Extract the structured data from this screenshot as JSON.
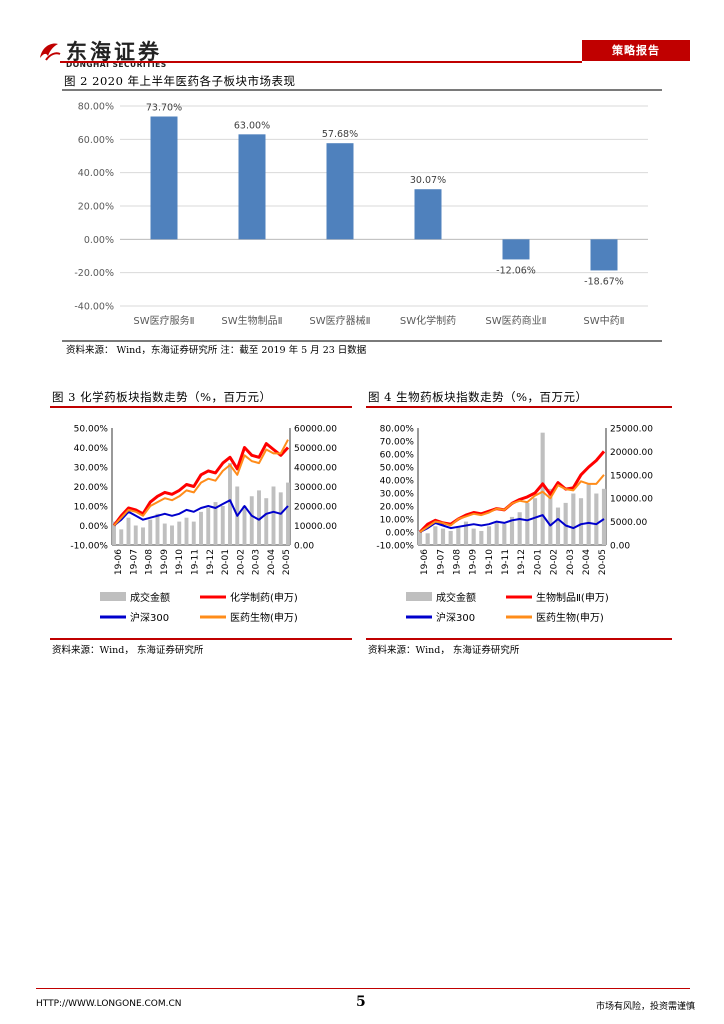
{
  "header": {
    "logo_name": "东海证券",
    "logo_sub": "DONGHAI SECURITIES",
    "badge": "策略报告"
  },
  "figure2": {
    "title": "图 2   2020 年上半年医药各子板块市场表现",
    "source": "资料来源：  Wind，东海证券研究所  注：截至 2019 年 5 月 23 日数据",
    "chart_data": {
      "type": "bar",
      "title": "",
      "categories": [
        "SW医疗服务Ⅱ",
        "SW生物制品Ⅱ",
        "SW医疗器械Ⅱ",
        "SW化学制药",
        "SW医药商业Ⅱ",
        "SW中药Ⅱ"
      ],
      "values": [
        73.7,
        63.0,
        57.68,
        30.07,
        -12.06,
        -18.67
      ],
      "value_labels": [
        "73.70%",
        "63.00%",
        "57.68%",
        "30.07%",
        "-12.06%",
        "-18.67%"
      ],
      "ylim": [
        -40,
        80
      ],
      "yticks": [
        "80.00%",
        "60.00%",
        "40.00%",
        "20.00%",
        "0.00%",
        "-20.00%",
        "-40.00%"
      ],
      "grid": true,
      "colors": {
        "bar": "#4f81bd"
      }
    }
  },
  "figure3": {
    "title": "图 3   化学药板块指数走势（%，百万元）",
    "source": "资料来源：Wind，  东海证券研究所",
    "chart_data": {
      "type": "line",
      "xticks": [
        "19-06",
        "19-07",
        "19-08",
        "19-09",
        "19-10",
        "19-11",
        "19-12",
        "20-01",
        "20-02",
        "20-03",
        "20-04",
        "20-05"
      ],
      "left_ticks": [
        "50.00%",
        "40.00%",
        "30.00%",
        "20.00%",
        "10.00%",
        "0.00%",
        "-10.00%"
      ],
      "right_ticks": [
        "60000.00",
        "50000.00",
        "40000.00",
        "30000.00",
        "20000.00",
        "10000.00",
        "0.00"
      ],
      "ylim_left": [
        -10,
        50
      ],
      "ylim_right": [
        0,
        60000
      ],
      "series": [
        {
          "name": "成交金额",
          "kind": "bar",
          "axis": "right",
          "color": "#bfbfbf",
          "values": [
            12000,
            8000,
            14000,
            10000,
            9000,
            13000,
            16000,
            11000,
            10000,
            12000,
            14000,
            12000,
            17000,
            19000,
            22000,
            20000,
            42000,
            30000,
            20000,
            25000,
            28000,
            24000,
            30000,
            27000,
            32000
          ]
        },
        {
          "name": "化学制药(申万)",
          "kind": "line",
          "axis": "left",
          "color": "#ff0000",
          "values": [
            0,
            5,
            9,
            8,
            6,
            12,
            15,
            17,
            16,
            18,
            21,
            20,
            26,
            28,
            27,
            32,
            35,
            29,
            40,
            36,
            35,
            42,
            39,
            36,
            40
          ]
        },
        {
          "name": "沪深300",
          "kind": "line",
          "axis": "left",
          "color": "#0000cc",
          "values": [
            0,
            3,
            7,
            5,
            3,
            4,
            5,
            6,
            5,
            6,
            8,
            7,
            9,
            10,
            9,
            11,
            13,
            5,
            10,
            5,
            3,
            6,
            7,
            6,
            10
          ]
        },
        {
          "name": "医药生物(申万)",
          "kind": "line",
          "axis": "left",
          "color": "#ff8c1a",
          "values": [
            0,
            4,
            8,
            7,
            5,
            10,
            12,
            14,
            13,
            15,
            18,
            17,
            22,
            24,
            23,
            28,
            31,
            26,
            36,
            33,
            32,
            39,
            37,
            37,
            44
          ]
        }
      ]
    }
  },
  "figure4": {
    "title": "图 4   生物药板块指数走势（%，百万元）",
    "source": "资料来源：Wind，  东海证券研究所",
    "chart_data": {
      "type": "line",
      "xticks": [
        "19-06",
        "19-07",
        "19-08",
        "19-09",
        "19-10",
        "19-11",
        "19-12",
        "20-01",
        "20-02",
        "20-03",
        "20-04",
        "20-05"
      ],
      "left_ticks": [
        "80.00%",
        "70.00%",
        "60.00%",
        "50.00%",
        "40.00%",
        "30.00%",
        "20.00%",
        "10.00%",
        "0.00%",
        "-10.00%"
      ],
      "right_ticks": [
        "25000.00",
        "20000.00",
        "15000.00",
        "10000.00",
        "5000.00",
        "0.00"
      ],
      "ylim_left": [
        -10,
        80
      ],
      "ylim_right": [
        0,
        25000
      ],
      "series": [
        {
          "name": "成交金额",
          "kind": "bar",
          "axis": "right",
          "color": "#bfbfbf",
          "values": [
            3000,
            2500,
            4000,
            3500,
            3000,
            4000,
            5000,
            3500,
            3000,
            4000,
            5000,
            4500,
            6000,
            7000,
            9000,
            10000,
            24000,
            12000,
            8000,
            9000,
            11000,
            10000,
            13000,
            11000,
            12000
          ]
        },
        {
          "name": "生物制品Ⅱ(申万)",
          "kind": "line",
          "axis": "left",
          "color": "#ff0000",
          "values": [
            0,
            6,
            9,
            7,
            6,
            10,
            13,
            15,
            14,
            16,
            18,
            17,
            22,
            25,
            27,
            30,
            37,
            29,
            38,
            33,
            34,
            44,
            50,
            55,
            62
          ]
        },
        {
          "name": "沪深300",
          "kind": "line",
          "axis": "left",
          "color": "#0000cc",
          "values": [
            0,
            3,
            7,
            5,
            3,
            4,
            5,
            6,
            5,
            6,
            8,
            7,
            9,
            10,
            9,
            11,
            13,
            5,
            10,
            5,
            3,
            6,
            7,
            6,
            10
          ]
        },
        {
          "name": "医药生物(申万)",
          "kind": "line",
          "axis": "left",
          "color": "#ff8c1a",
          "values": [
            0,
            4,
            8,
            7,
            5,
            10,
            12,
            14,
            13,
            15,
            18,
            17,
            22,
            24,
            23,
            28,
            31,
            26,
            36,
            33,
            32,
            39,
            37,
            37,
            44
          ]
        }
      ]
    }
  },
  "footer": {
    "url": "HTTP://WWW.LONGONE.COM.CN",
    "page": "5",
    "disclaimer": "市场有风险，投资需谨慎"
  }
}
